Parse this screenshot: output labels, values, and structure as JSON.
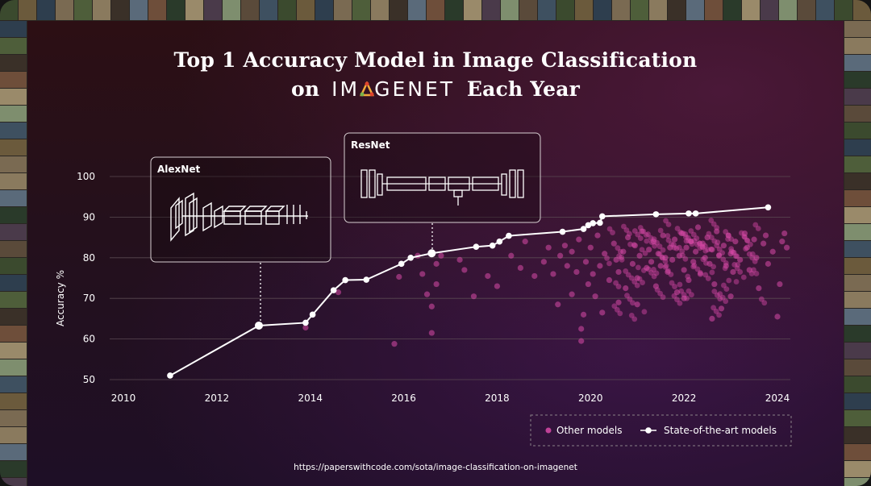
{
  "title": {
    "line1": "Top 1 Accuracy Model in Image Classification",
    "line2_prefix": "on",
    "line2_brand": "IMAGENET",
    "line2_suffix": "Each Year"
  },
  "source": "https://paperswithcode.com/sota/image-classification-on-imagenet",
  "colors": {
    "sota": "#ffffff",
    "other": "#d94aa8",
    "grid": "#5a4a52",
    "brand_accent_red": "#e0442c",
    "brand_accent_green": "#7ab34a",
    "brand_accent_orange": "#f2a93b"
  },
  "chart_data": {
    "type": "scatter",
    "title": "Top 1 Accuracy Model in Image Classification on IMAGENET Each Year",
    "xlabel": "",
    "ylabel": "Accuracy %",
    "xlim": [
      2010,
      2024.5
    ],
    "ylim": [
      50,
      100
    ],
    "x_ticks": [
      "2010",
      "2012",
      "2014",
      "2016",
      "2018",
      "2020",
      "2022",
      "2024"
    ],
    "y_ticks": [
      "50",
      "60",
      "70",
      "80",
      "90",
      "100"
    ],
    "grid": true,
    "legend": {
      "position": "bottom-right",
      "other_label": "Other models",
      "sota_label": "State-of-the-art models"
    },
    "annotations": [
      {
        "label": "AlexNet",
        "x": 2012.9,
        "y": 63.3
      },
      {
        "label": "ResNet",
        "x": 2016.6,
        "y": 81.1
      }
    ],
    "series": [
      {
        "name": "State-of-the-art models",
        "points": [
          [
            2011.0,
            51.0
          ],
          [
            2012.9,
            63.3
          ],
          [
            2013.9,
            64.0
          ],
          [
            2014.05,
            66.0
          ],
          [
            2014.5,
            72.0
          ],
          [
            2014.75,
            74.5
          ],
          [
            2015.2,
            74.6
          ],
          [
            2015.95,
            78.5
          ],
          [
            2016.15,
            80.0
          ],
          [
            2016.6,
            81.1
          ],
          [
            2017.55,
            82.7
          ],
          [
            2017.9,
            83.0
          ],
          [
            2018.05,
            84.0
          ],
          [
            2018.25,
            85.4
          ],
          [
            2019.4,
            86.4
          ],
          [
            2019.85,
            87.1
          ],
          [
            2019.95,
            88.0
          ],
          [
            2020.05,
            88.5
          ],
          [
            2020.2,
            88.6
          ],
          [
            2020.25,
            90.2
          ],
          [
            2021.4,
            90.7
          ],
          [
            2022.1,
            90.9
          ],
          [
            2022.25,
            90.9
          ],
          [
            2023.8,
            92.4
          ]
        ]
      },
      {
        "name": "Other models",
        "points": [
          [
            2013.9,
            62.8
          ],
          [
            2014.6,
            71.5
          ],
          [
            2015.8,
            58.8
          ],
          [
            2015.9,
            75.3
          ],
          [
            2016.3,
            80.5
          ],
          [
            2016.4,
            76.0
          ],
          [
            2016.5,
            71.0
          ],
          [
            2016.6,
            68.0
          ],
          [
            2016.6,
            61.5
          ],
          [
            2016.7,
            73.5
          ],
          [
            2016.7,
            78.5
          ],
          [
            2016.8,
            80.5
          ],
          [
            2017.2,
            79.5
          ],
          [
            2017.3,
            77.0
          ],
          [
            2017.5,
            70.5
          ],
          [
            2017.8,
            75.5
          ],
          [
            2018.0,
            73.0
          ],
          [
            2018.3,
            80.5
          ],
          [
            2018.5,
            77.5
          ],
          [
            2018.6,
            84.0
          ],
          [
            2018.8,
            75.5
          ],
          [
            2019.0,
            79.0
          ],
          [
            2019.1,
            82.5
          ],
          [
            2019.2,
            76.0
          ],
          [
            2019.3,
            68.5
          ],
          [
            2019.35,
            80.5
          ],
          [
            2019.45,
            83.0
          ],
          [
            2019.5,
            78.0
          ],
          [
            2019.6,
            81.5
          ],
          [
            2019.6,
            71.0
          ],
          [
            2019.7,
            76.5
          ],
          [
            2019.75,
            84.5
          ],
          [
            2019.8,
            62.5
          ],
          [
            2019.8,
            59.5
          ],
          [
            2019.85,
            66.0
          ],
          [
            2019.9,
            79.0
          ],
          [
            2019.95,
            73.5
          ],
          [
            2020.0,
            82.5
          ],
          [
            2020.05,
            76.0
          ],
          [
            2020.1,
            70.5
          ],
          [
            2020.15,
            85.5
          ],
          [
            2020.2,
            78.0
          ],
          [
            2020.25,
            66.5
          ],
          [
            2020.3,
            81.0
          ],
          [
            2020.4,
            74.5
          ],
          [
            2020.5,
            83.5
          ],
          [
            2020.55,
            79.5
          ],
          [
            2020.6,
            76.5
          ],
          [
            2020.7,
            81.5
          ],
          [
            2020.75,
            72.5
          ],
          [
            2020.8,
            85.0
          ],
          [
            2020.9,
            78.5
          ],
          [
            2020.95,
            83.0
          ],
          [
            2021.0,
            75.0
          ],
          [
            2021.05,
            80.5
          ],
          [
            2021.1,
            86.5
          ],
          [
            2021.2,
            77.5
          ],
          [
            2021.25,
            82.0
          ],
          [
            2021.3,
            79.0
          ],
          [
            2021.35,
            84.0
          ],
          [
            2021.4,
            73.0
          ],
          [
            2021.45,
            81.0
          ],
          [
            2021.5,
            78.0
          ],
          [
            2021.55,
            85.5
          ],
          [
            2021.6,
            80.0
          ],
          [
            2021.65,
            76.5
          ],
          [
            2021.7,
            82.5
          ],
          [
            2021.75,
            79.5
          ],
          [
            2021.8,
            84.5
          ],
          [
            2021.85,
            71.5
          ],
          [
            2021.9,
            80.5
          ],
          [
            2021.95,
            86.0
          ],
          [
            2022.0,
            77.0
          ],
          [
            2022.05,
            82.5
          ],
          [
            2022.1,
            74.5
          ],
          [
            2022.15,
            84.0
          ],
          [
            2022.2,
            79.0
          ],
          [
            2022.25,
            81.5
          ],
          [
            2022.3,
            87.5
          ],
          [
            2022.35,
            76.0
          ],
          [
            2022.4,
            83.5
          ],
          [
            2022.45,
            80.0
          ],
          [
            2022.5,
            85.0
          ],
          [
            2022.55,
            78.5
          ],
          [
            2022.6,
            82.0
          ],
          [
            2022.65,
            73.5
          ],
          [
            2022.7,
            86.5
          ],
          [
            2022.75,
            80.5
          ],
          [
            2022.8,
            67.5
          ],
          [
            2022.85,
            83.0
          ],
          [
            2022.9,
            78.0
          ],
          [
            2022.95,
            85.5
          ],
          [
            2023.0,
            81.0
          ],
          [
            2023.05,
            76.5
          ],
          [
            2023.1,
            84.0
          ],
          [
            2023.2,
            79.5
          ],
          [
            2023.3,
            86.0
          ],
          [
            2023.35,
            82.5
          ],
          [
            2023.4,
            77.0
          ],
          [
            2023.5,
            84.5
          ],
          [
            2023.55,
            80.0
          ],
          [
            2023.6,
            72.5
          ],
          [
            2023.7,
            83.5
          ],
          [
            2023.75,
            85.5
          ],
          [
            2023.8,
            78.5
          ],
          [
            2023.9,
            81.5
          ],
          [
            2024.0,
            65.5
          ],
          [
            2024.05,
            73.5
          ],
          [
            2024.1,
            84.0
          ],
          [
            2024.15,
            86.0
          ],
          [
            2024.2,
            82.5
          ],
          [
            2022.0,
            70.0
          ],
          [
            2021.0,
            68.5
          ],
          [
            2022.6,
            65.0
          ],
          [
            2020.6,
            69.0
          ],
          [
            2023.0,
            70.5
          ]
        ]
      }
    ]
  }
}
